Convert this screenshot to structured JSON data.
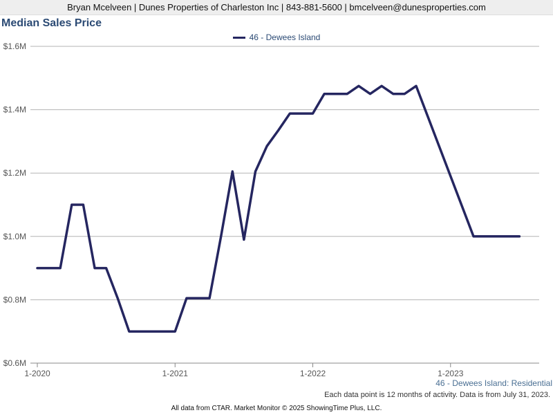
{
  "header": {
    "contact": "Bryan Mcelveen | Dunes Properties of Charleston Inc | 843-881-5600 | bmcelveen@dunesproperties.com"
  },
  "footer": {
    "series_label": "46 - Dewees Island: Residential",
    "note": "Each data point is 12 months of activity. Data is from July 31, 2023.",
    "credit": "All data from CTAR. Market Monitor © 2025 ShowingTime Plus, LLC."
  },
  "colors": {
    "series": "#252660",
    "title": "#2b4a74",
    "grid": "#b3b3b3"
  },
  "chart_data": {
    "type": "line",
    "title": "Median Sales Price",
    "xlabel": "",
    "ylabel": "",
    "grid": true,
    "legend_position": "top-center",
    "ylim": [
      600000,
      1600000
    ],
    "yticks": [
      600000,
      800000,
      1000000,
      1200000,
      1400000,
      1600000
    ],
    "ytick_labels": [
      "$0.6M",
      "$0.8M",
      "$1.0M",
      "$1.2M",
      "$1.4M",
      "$1.6M"
    ],
    "xlim": [
      "2020-01",
      "2023-08"
    ],
    "xticks": [
      "2020-01",
      "2021-01",
      "2022-01",
      "2023-01"
    ],
    "xtick_labels": [
      "1-2020",
      "1-2021",
      "1-2022",
      "1-2023"
    ],
    "x": [
      "2020-01",
      "2020-02",
      "2020-03",
      "2020-04",
      "2020-05",
      "2020-06",
      "2020-07",
      "2020-08",
      "2020-09",
      "2020-10",
      "2020-11",
      "2020-12",
      "2021-01",
      "2021-02",
      "2021-03",
      "2021-04",
      "2021-05",
      "2021-06",
      "2021-07",
      "2021-08",
      "2021-09",
      "2021-10",
      "2021-11",
      "2021-12",
      "2022-01",
      "2022-02",
      "2022-03",
      "2022-04",
      "2022-05",
      "2022-06",
      "2022-07",
      "2022-08",
      "2022-09",
      "2022-10",
      "2022-11",
      "2022-12",
      "2023-01",
      "2023-02",
      "2023-03",
      "2023-04",
      "2023-05",
      "2023-06",
      "2023-07"
    ],
    "series": [
      {
        "name": "46 - Dewees Island",
        "values": [
          900000,
          900000,
          900000,
          1100000,
          1100000,
          900000,
          900000,
          805000,
          700000,
          700000,
          700000,
          700000,
          700000,
          805000,
          805000,
          805000,
          1000000,
          1205000,
          990000,
          1205000,
          1285000,
          1335000,
          1388000,
          1388000,
          1388000,
          1450000,
          1450000,
          1450000,
          1475000,
          1450000,
          1475000,
          1450000,
          1450000,
          1475000,
          1380000,
          1285000,
          1190000,
          1095000,
          1000000,
          1000000,
          1000000,
          1000000,
          1000000
        ]
      }
    ]
  }
}
